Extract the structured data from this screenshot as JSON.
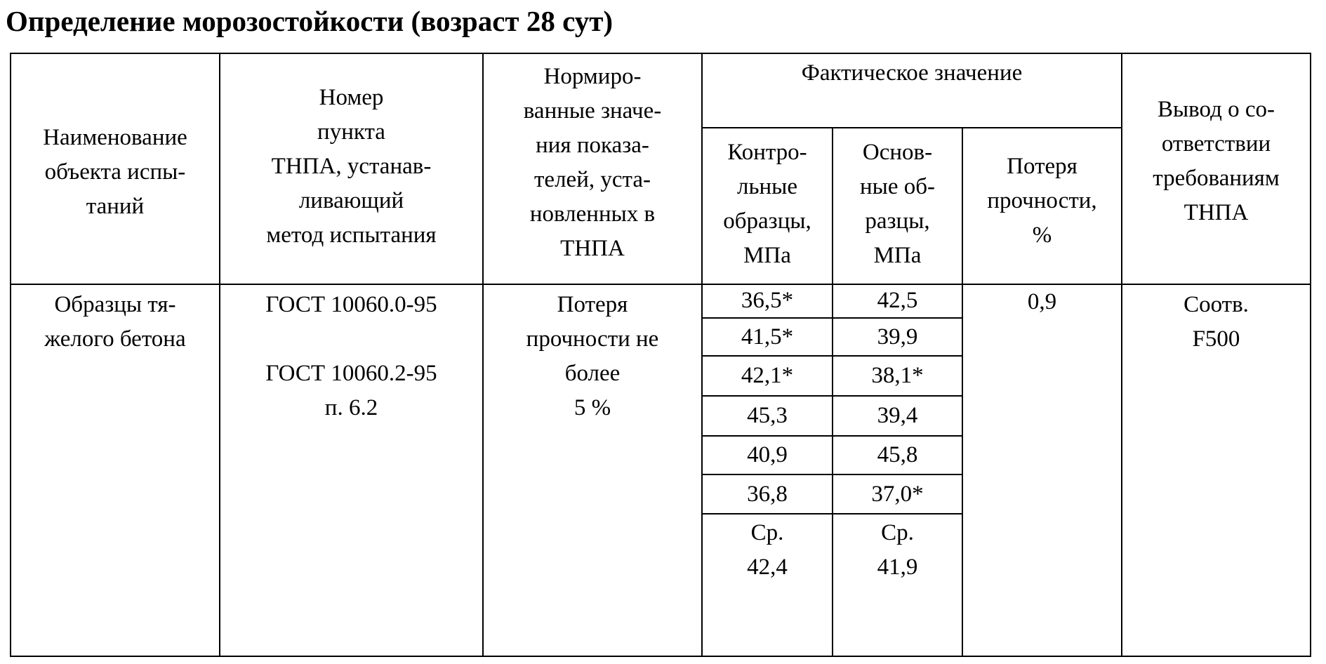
{
  "title": "Определение морозостойкости (возраст 28 сут)",
  "headers": {
    "object": "Наименование\nобъекта испы-\nтаний",
    "method": "Номер\nпункта\nТНПА, устанав-\nливающий\nметод испытания",
    "norm": "Нормиро-\nванные значе-\nния показа-\nтелей, уста-\nновленных в\nТНПА",
    "actual": "Фактическое значение",
    "control": "Контро-\nльные\nобразцы,\nМПа",
    "main": "Основ-\nные об-\nразцы,\nМПа",
    "loss": "Потеря\nпрочности,\n%",
    "conclusion": "Вывод о со-\nответствии\nтребованиям\nТНПА"
  },
  "row": {
    "object": "Образцы тя-\nжелого бетона",
    "method": "ГОСТ 10060.0-95\n\nГОСТ 10060.2-95\nп. 6.2",
    "norm": "Потеря\nпрочности не\nболее\n5 %",
    "control": [
      "36,5*",
      "41,5*",
      "42,1*",
      "45,3",
      "40,9",
      "36,8"
    ],
    "main": [
      "42,5",
      "39,9",
      "38,1*",
      "39,4",
      "45,8",
      "37,0*"
    ],
    "control_avg": "Ср.\n42,4",
    "main_avg": "Ср.\n41,9",
    "loss": "0,9",
    "conclusion": "Соотв.\nF500"
  }
}
